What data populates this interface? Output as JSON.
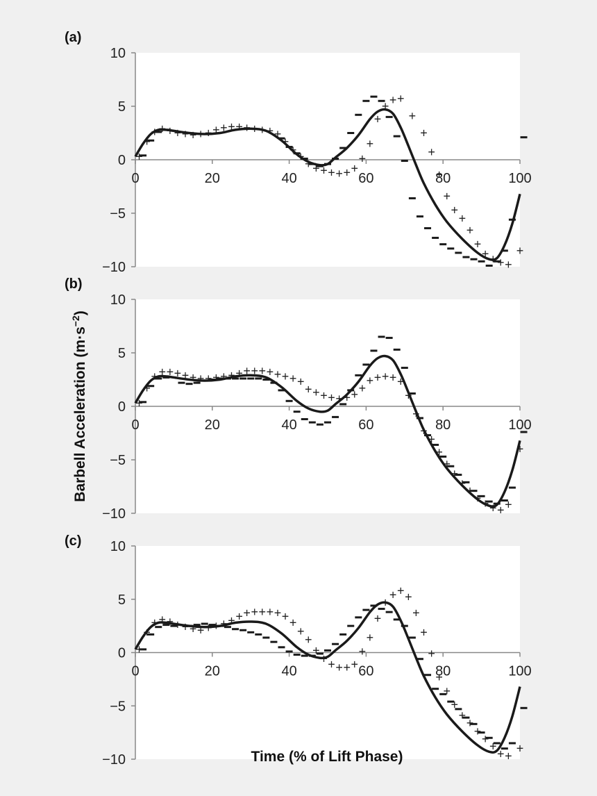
{
  "figure": {
    "ylabel": "Barbell Acceleration (m·s",
    "ylabel_exp": "−2",
    "ylabel_close": ")",
    "xlabel": "Time (% of Lift Phase)"
  },
  "chart_data": [
    {
      "type": "line",
      "panel": "(a)",
      "xlim": [
        0,
        100
      ],
      "ylim": [
        -10,
        10
      ],
      "xticks": [
        "0",
        "20",
        "40",
        "60",
        "80",
        "100"
      ],
      "yticks": [
        "10",
        "5",
        "0",
        "−5",
        "−10"
      ],
      "grid": false,
      "line": {
        "x": [
          0,
          2,
          4,
          6,
          8,
          10,
          14,
          18,
          22,
          26,
          30,
          34,
          38,
          42,
          45,
          48,
          50,
          52,
          55,
          58,
          61,
          63,
          65,
          67,
          69,
          71,
          73,
          75,
          78,
          81,
          85,
          89,
          92,
          94,
          96,
          98,
          100
        ],
        "y": [
          0.3,
          1.5,
          2.4,
          2.8,
          2.8,
          2.7,
          2.5,
          2.4,
          2.5,
          2.8,
          2.9,
          2.7,
          1.8,
          0.5,
          -0.2,
          -0.5,
          -0.4,
          0.2,
          1.1,
          2.3,
          3.8,
          4.5,
          4.7,
          4.3,
          3.0,
          1.3,
          -0.5,
          -2.2,
          -4.2,
          -5.8,
          -7.4,
          -8.7,
          -9.3,
          -9.2,
          -8.0,
          -6.0,
          -3.2
        ]
      },
      "plus": {
        "x": [
          1,
          3,
          5,
          7,
          9,
          11,
          13,
          15,
          17,
          19,
          21,
          23,
          25,
          27,
          29,
          31,
          33,
          35,
          37,
          39,
          41,
          43,
          45,
          47,
          49,
          51,
          53,
          55,
          57,
          59,
          61,
          63,
          65,
          67,
          69,
          72,
          75,
          77,
          79,
          81,
          83,
          85,
          87,
          89,
          91,
          93,
          95,
          97,
          100
        ],
        "y": [
          0.3,
          1.7,
          2.6,
          2.9,
          2.7,
          2.5,
          2.4,
          2.3,
          2.4,
          2.5,
          2.8,
          3.0,
          3.1,
          3.1,
          3.0,
          2.9,
          2.8,
          2.7,
          2.4,
          1.7,
          0.9,
          0.3,
          -0.4,
          -0.8,
          -1.0,
          -1.2,
          -1.3,
          -1.2,
          -0.8,
          0.1,
          1.5,
          3.8,
          5.0,
          5.6,
          5.7,
          4.1,
          2.5,
          0.7,
          -1.4,
          -3.4,
          -4.7,
          -5.5,
          -6.6,
          -7.9,
          -8.8,
          -9.3,
          -9.6,
          -9.8,
          -8.5
        ]
      },
      "dash": {
        "x": [
          2,
          4,
          6,
          8,
          38,
          40,
          42,
          44,
          46,
          48,
          50,
          52,
          54,
          56,
          58,
          60,
          62,
          64,
          66,
          68,
          70,
          72,
          74,
          76,
          78,
          80,
          82,
          84,
          86,
          88,
          90,
          92,
          94,
          96,
          98,
          101
        ],
        "y": [
          0.4,
          1.8,
          2.6,
          2.8,
          2.0,
          1.2,
          0.6,
          0.1,
          -0.4,
          -0.6,
          -0.4,
          0.1,
          1.1,
          2.5,
          4.2,
          5.5,
          5.9,
          5.5,
          4.0,
          2.2,
          -0.1,
          -3.6,
          -5.3,
          -6.4,
          -7.3,
          -7.9,
          -8.3,
          -8.7,
          -9.1,
          -9.3,
          -9.5,
          -9.9,
          -9.5,
          -8.5,
          -5.6,
          2.1
        ]
      }
    },
    {
      "type": "line",
      "panel": "(b)",
      "xlim": [
        0,
        100
      ],
      "ylim": [
        -10,
        10
      ],
      "xticks": [
        "0",
        "20",
        "40",
        "60",
        "80",
        "100"
      ],
      "yticks": [
        "10",
        "5",
        "0",
        "−5",
        "−10"
      ],
      "grid": false,
      "line": {
        "x": [
          0,
          2,
          4,
          6,
          8,
          10,
          14,
          18,
          22,
          26,
          30,
          34,
          38,
          42,
          45,
          48,
          50,
          52,
          55,
          58,
          61,
          63,
          65,
          67,
          69,
          71,
          73,
          75,
          78,
          81,
          85,
          89,
          92,
          94,
          96,
          98,
          100
        ],
        "y": [
          0.3,
          1.5,
          2.4,
          2.8,
          2.8,
          2.7,
          2.5,
          2.4,
          2.5,
          2.8,
          2.9,
          2.7,
          1.8,
          0.5,
          -0.2,
          -0.5,
          -0.4,
          0.2,
          1.1,
          2.3,
          3.8,
          4.5,
          4.7,
          4.3,
          3.0,
          1.3,
          -0.5,
          -2.2,
          -4.2,
          -5.8,
          -7.4,
          -8.7,
          -9.3,
          -9.2,
          -8.0,
          -6.0,
          -3.2
        ]
      },
      "plus": {
        "x": [
          1,
          3,
          5,
          7,
          9,
          11,
          13,
          15,
          17,
          19,
          21,
          23,
          25,
          27,
          29,
          31,
          33,
          35,
          37,
          39,
          41,
          43,
          45,
          47,
          49,
          51,
          53,
          55,
          57,
          59,
          61,
          63,
          65,
          67,
          69,
          71,
          73,
          75,
          77,
          79,
          81,
          83,
          85,
          87,
          89,
          91,
          93,
          95,
          97,
          100
        ],
        "y": [
          0.3,
          1.7,
          2.8,
          3.2,
          3.2,
          3.1,
          2.9,
          2.7,
          2.6,
          2.6,
          2.7,
          2.8,
          2.9,
          3.1,
          3.3,
          3.3,
          3.3,
          3.2,
          3.0,
          2.8,
          2.6,
          2.3,
          1.6,
          1.3,
          1.0,
          0.8,
          0.7,
          0.8,
          1.1,
          1.7,
          2.4,
          2.7,
          2.8,
          2.7,
          2.3,
          1.0,
          -0.7,
          -2.3,
          -3.1,
          -4.3,
          -5.4,
          -6.3,
          -7.2,
          -7.9,
          -8.6,
          -9.1,
          -9.5,
          -9.7,
          -9.2,
          -4.0
        ]
      },
      "dash": {
        "x": [
          2,
          4,
          6,
          8,
          12,
          14,
          16,
          18,
          20,
          22,
          24,
          26,
          28,
          30,
          32,
          34,
          36,
          38,
          40,
          42,
          44,
          46,
          48,
          50,
          52,
          54,
          56,
          58,
          60,
          62,
          64,
          66,
          68,
          70,
          72,
          74,
          76,
          78,
          80,
          82,
          84,
          86,
          88,
          90,
          92,
          94,
          96,
          98,
          101
        ],
        "y": [
          0.4,
          1.9,
          2.6,
          2.7,
          2.2,
          2.1,
          2.2,
          2.4,
          2.5,
          2.6,
          2.6,
          2.6,
          2.6,
          2.6,
          2.6,
          2.5,
          2.2,
          1.5,
          0.5,
          -0.5,
          -1.2,
          -1.5,
          -1.7,
          -1.5,
          -1.0,
          0.2,
          1.5,
          2.9,
          3.9,
          5.2,
          6.5,
          6.4,
          5.3,
          3.6,
          1.2,
          -1.1,
          -2.7,
          -3.6,
          -4.7,
          -5.6,
          -6.4,
          -7.1,
          -7.9,
          -8.4,
          -8.9,
          -9.1,
          -8.8,
          -7.6,
          -2.4
        ]
      }
    },
    {
      "type": "line",
      "panel": "(c)",
      "xlim": [
        0,
        100
      ],
      "ylim": [
        -10,
        10
      ],
      "xticks": [
        "0",
        "20",
        "40",
        "60",
        "80",
        "100"
      ],
      "yticks": [
        "10",
        "5",
        "0",
        "−5",
        "−10"
      ],
      "grid": false,
      "line": {
        "x": [
          0,
          2,
          4,
          6,
          8,
          10,
          14,
          18,
          22,
          26,
          30,
          34,
          38,
          42,
          45,
          48,
          50,
          52,
          55,
          58,
          61,
          63,
          65,
          67,
          69,
          71,
          73,
          75,
          78,
          81,
          85,
          89,
          92,
          94,
          96,
          98,
          100
        ],
        "y": [
          0.3,
          1.5,
          2.4,
          2.8,
          2.8,
          2.7,
          2.5,
          2.4,
          2.5,
          2.8,
          2.9,
          2.7,
          1.8,
          0.5,
          -0.2,
          -0.5,
          -0.4,
          0.2,
          1.1,
          2.3,
          3.8,
          4.5,
          4.7,
          4.3,
          3.0,
          1.3,
          -0.5,
          -2.2,
          -4.2,
          -5.8,
          -7.4,
          -8.7,
          -9.3,
          -9.2,
          -8.0,
          -6.0,
          -3.2
        ]
      },
      "plus": {
        "x": [
          1,
          3,
          5,
          7,
          9,
          11,
          13,
          15,
          17,
          19,
          21,
          23,
          25,
          27,
          29,
          31,
          33,
          35,
          37,
          39,
          41,
          43,
          45,
          47,
          49,
          51,
          53,
          55,
          57,
          59,
          61,
          63,
          65,
          67,
          69,
          71,
          73,
          75,
          77,
          79,
          81,
          83,
          85,
          87,
          89,
          91,
          93,
          95,
          97,
          100
        ],
        "y": [
          0.3,
          1.9,
          2.8,
          3.1,
          2.9,
          2.6,
          2.4,
          2.2,
          2.1,
          2.3,
          2.5,
          2.7,
          3.0,
          3.4,
          3.7,
          3.8,
          3.8,
          3.8,
          3.7,
          3.4,
          2.8,
          2.0,
          1.2,
          0.2,
          -0.6,
          -1.1,
          -1.4,
          -1.4,
          -1.1,
          0.1,
          1.4,
          3.2,
          4.7,
          5.4,
          5.8,
          5.2,
          3.7,
          1.9,
          -0.1,
          -2.3,
          -3.6,
          -4.9,
          -5.9,
          -6.6,
          -7.4,
          -8.1,
          -8.8,
          -9.5,
          -9.7,
          -9.0
        ]
      },
      "dash": {
        "x": [
          2,
          4,
          6,
          8,
          10,
          14,
          16,
          18,
          20,
          22,
          24,
          26,
          28,
          30,
          32,
          34,
          36,
          38,
          40,
          42,
          44,
          46,
          48,
          50,
          52,
          54,
          56,
          58,
          60,
          62,
          64,
          66,
          68,
          70,
          72,
          74,
          76,
          78,
          80,
          82,
          84,
          86,
          88,
          90,
          92,
          94,
          96,
          98,
          101
        ],
        "y": [
          0.3,
          1.7,
          2.4,
          2.6,
          2.5,
          2.5,
          2.6,
          2.7,
          2.6,
          2.5,
          2.4,
          2.2,
          2.1,
          1.9,
          1.7,
          1.4,
          1.0,
          0.5,
          0.1,
          -0.2,
          -0.3,
          -0.3,
          -0.1,
          0.2,
          0.8,
          1.7,
          2.5,
          3.3,
          4.0,
          4.4,
          4.1,
          3.8,
          3.1,
          2.5,
          1.4,
          -0.6,
          -2.1,
          -3.4,
          -3.9,
          -4.6,
          -5.3,
          -6.1,
          -6.7,
          -7.5,
          -8.0,
          -8.5,
          -9.0,
          -8.5,
          -5.2
        ]
      }
    }
  ]
}
